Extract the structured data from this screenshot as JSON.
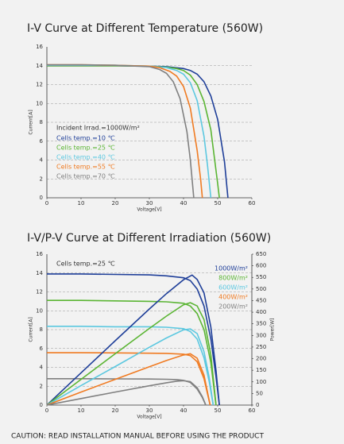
{
  "chart_data": [
    {
      "type": "line",
      "title": "I-V Curve at Different Temperature (560W)",
      "x_label": "Voltage[V]",
      "y_label": "Current[A]",
      "annotation": "Incident Irrad.=1000W/m²",
      "legend": "inside-left",
      "xlim": [
        0,
        60
      ],
      "xticks": [
        0,
        10,
        20,
        30,
        40,
        50,
        60
      ],
      "ylim": [
        0,
        16
      ],
      "yticks": [
        0,
        2,
        4,
        6,
        8,
        10,
        12,
        14,
        16
      ],
      "grid": true,
      "series": [
        {
          "name": "Cells temp.=10 ℃",
          "color": "#1f3f99",
          "x": [
            0,
            10,
            20,
            30,
            35,
            40,
            42,
            44,
            46,
            48,
            50,
            52,
            53
          ],
          "values": [
            14,
            14,
            14,
            13.95,
            13.9,
            13.7,
            13.5,
            13.1,
            12.3,
            10.8,
            8.3,
            3.8,
            0
          ]
        },
        {
          "name": "Cells temp.=25 ℃",
          "color": "#5bb534",
          "x": [
            0,
            10,
            20,
            30,
            35,
            38,
            40,
            42,
            44,
            46,
            48,
            50,
            50.5
          ],
          "values": [
            14,
            14,
            14,
            13.95,
            13.85,
            13.7,
            13.5,
            13.0,
            12.0,
            10.2,
            7.2,
            1.5,
            0
          ]
        },
        {
          "name": "Cells temp.=40 ℃",
          "color": "#5cc8e0",
          "x": [
            0,
            10,
            20,
            30,
            35,
            38,
            40,
            42,
            44,
            46,
            47,
            48
          ],
          "values": [
            14.05,
            14.05,
            14.05,
            13.95,
            13.8,
            13.5,
            13.1,
            12.2,
            10.3,
            6.5,
            3.5,
            0
          ]
        },
        {
          "name": "Cells temp.=55 ℃",
          "color": "#f07b22",
          "x": [
            0,
            10,
            20,
            30,
            33,
            36,
            38,
            40,
            42,
            44,
            45,
            45.5
          ],
          "values": [
            14.1,
            14.1,
            14.05,
            13.95,
            13.8,
            13.4,
            12.9,
            11.8,
            9.5,
            5.0,
            2.0,
            0
          ]
        },
        {
          "name": "Cells temp.=70 ℃",
          "color": "#808080",
          "x": [
            0,
            10,
            20,
            30,
            33,
            35,
            37,
            39,
            41,
            42,
            43
          ],
          "values": [
            14.1,
            14.1,
            14.05,
            13.9,
            13.6,
            13.2,
            12.3,
            10.5,
            7.0,
            4.0,
            0
          ]
        }
      ]
    },
    {
      "type": "line",
      "title": "I-V/P-V Curve at Different Irradiation (560W)",
      "x_label": "Voltage[V]",
      "y_label": "Current[A]",
      "y2_label": "Power[W]",
      "annotation": "Cells temp.=25 ℃",
      "legend": "upper-right",
      "xlim": [
        0,
        60
      ],
      "xticks": [
        0,
        10,
        20,
        30,
        40,
        50,
        60
      ],
      "ylim": [
        0,
        16
      ],
      "yticks": [
        0,
        2,
        4,
        6,
        8,
        10,
        12,
        14,
        16
      ],
      "grid": true,
      "y2lim": [
        0,
        650
      ],
      "y2ticks": [
        0,
        50,
        100,
        150,
        200,
        250,
        300,
        350,
        400,
        450,
        500,
        550,
        600,
        650
      ],
      "series": [
        {
          "name": "1000W/m²",
          "color": "#1f3f99",
          "x": [
            0,
            10,
            20,
            30,
            35,
            40,
            42,
            44,
            46,
            48,
            49.5,
            50.5
          ],
          "values": [
            13.9,
            13.9,
            13.85,
            13.8,
            13.7,
            13.5,
            13.2,
            12.3,
            10.5,
            7,
            3,
            0
          ]
        },
        {
          "name": "800W/m²",
          "color": "#5bb534",
          "x": [
            0,
            10,
            20,
            30,
            35,
            40,
            42,
            44,
            46,
            48,
            49.5
          ],
          "values": [
            11.1,
            11.1,
            11.05,
            11.0,
            10.95,
            10.8,
            10.5,
            9.7,
            8.0,
            4.5,
            0
          ]
        },
        {
          "name": "600W/m²",
          "color": "#5cc8e0",
          "x": [
            0,
            10,
            20,
            30,
            35,
            40,
            42,
            44,
            46,
            47.5,
            48.7
          ],
          "values": [
            8.35,
            8.35,
            8.3,
            8.3,
            8.25,
            8.1,
            7.8,
            7.0,
            5.0,
            2.5,
            0
          ]
        },
        {
          "name": "400W/m²",
          "color": "#f07b22",
          "x": [
            0,
            10,
            20,
            30,
            35,
            40,
            42,
            44,
            46,
            47.8
          ],
          "values": [
            5.55,
            5.55,
            5.53,
            5.5,
            5.48,
            5.4,
            5.25,
            4.6,
            2.8,
            0
          ]
        },
        {
          "name": "200W/m²",
          "color": "#808080",
          "x": [
            0,
            10,
            20,
            30,
            35,
            38,
            40,
            42,
            44,
            45.5,
            46.5
          ],
          "values": [
            2.8,
            2.8,
            2.78,
            2.76,
            2.74,
            2.7,
            2.62,
            2.4,
            1.7,
            0.8,
            0
          ]
        },
        {
          "axis": "y2",
          "color": "#1f3f99",
          "x": [
            0,
            10,
            20,
            30,
            35,
            40,
            42.5,
            44,
            46,
            48,
            49.5,
            50.5
          ],
          "values": [
            0,
            139,
            277,
            414,
            480,
            540,
            560,
            541,
            483,
            336,
            149,
            0
          ]
        },
        {
          "axis": "y2",
          "color": "#5bb534",
          "x": [
            0,
            10,
            20,
            30,
            35,
            40,
            42,
            44,
            46,
            48,
            49.5
          ],
          "values": [
            0,
            111,
            221,
            330,
            383,
            432,
            441,
            427,
            368,
            216,
            0
          ]
        },
        {
          "axis": "y2",
          "color": "#5cc8e0",
          "x": [
            0,
            10,
            20,
            30,
            35,
            40,
            42,
            44,
            46,
            47.5,
            48.7
          ],
          "values": [
            0,
            84,
            166,
            249,
            289,
            324,
            328,
            308,
            230,
            119,
            0
          ]
        },
        {
          "axis": "y2",
          "color": "#f07b22",
          "x": [
            0,
            10,
            20,
            30,
            35,
            40,
            42,
            44,
            46,
            47.8
          ],
          "values": [
            0,
            56,
            111,
            165,
            192,
            216,
            221,
            202,
            129,
            0
          ]
        },
        {
          "axis": "y2",
          "color": "#808080",
          "x": [
            0,
            10,
            20,
            30,
            35,
            38,
            40,
            42,
            44,
            45.5,
            46.5
          ],
          "values": [
            0,
            28,
            56,
            83,
            96,
            103,
            105,
            101,
            75,
            36,
            0
          ]
        }
      ]
    }
  ],
  "caution": "CAUTION: READ INSTALLATION MANUAL BEFORE USING THE PRODUCT"
}
